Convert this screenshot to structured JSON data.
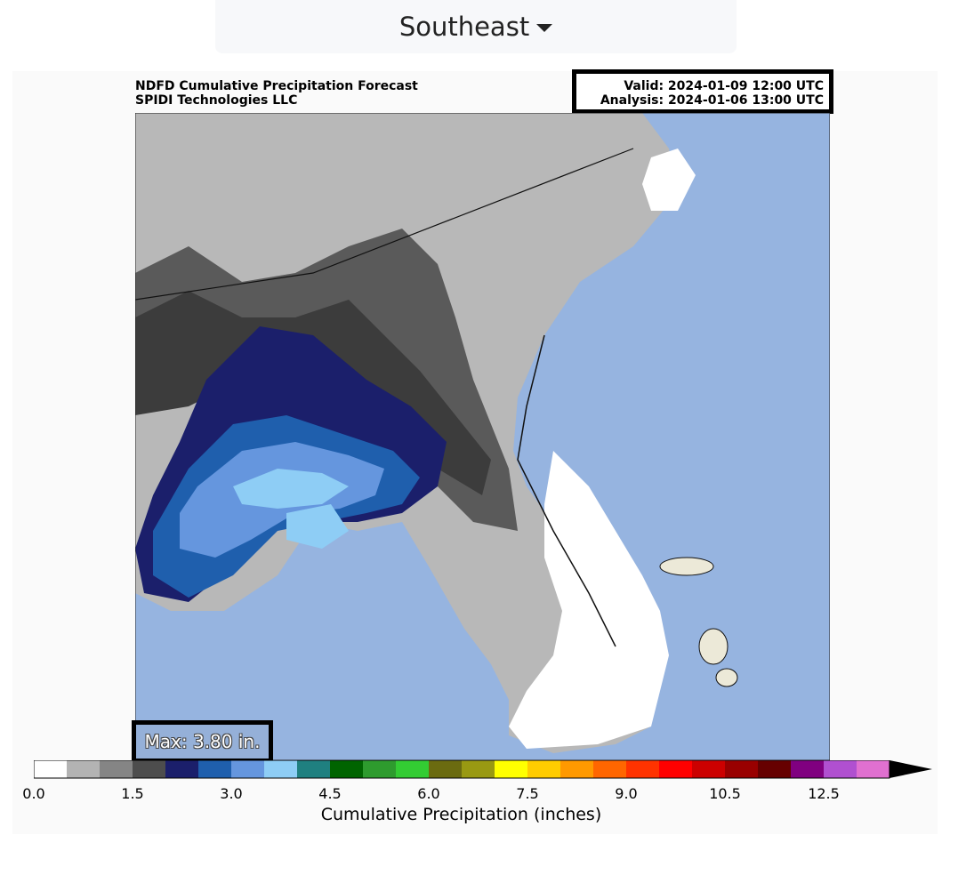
{
  "region_selector": {
    "label": "Southeast"
  },
  "figure": {
    "title_line1": "NDFD Cumulative Precipitation Forecast",
    "title_line2": "SPIDI Technologies LLC",
    "valid": "Valid: 2024-01-09 12:00 UTC",
    "analysis": "Analysis: 2024-01-06 13:00 UTC",
    "max_label": "Max: 3.80 in."
  },
  "colorbar": {
    "label": "Cumulative Precipitation (inches)",
    "ticks": [
      "0.0",
      "1.5",
      "3.0",
      "4.5",
      "6.0",
      "7.5",
      "9.0",
      "10.5",
      "12.5"
    ],
    "colors": [
      "#ffffff",
      "#b3b3b3",
      "#858585",
      "#4d4d4d",
      "#1b1f6b",
      "#1f5fad",
      "#6596de",
      "#8ecdf5",
      "#1f8080",
      "#006400",
      "#2e9b2e",
      "#33cc33",
      "#6b6b10",
      "#999912",
      "#ffff00",
      "#ffcc00",
      "#ff9900",
      "#ff6600",
      "#ff3300",
      "#ff0000",
      "#cc0000",
      "#990000",
      "#660000",
      "#800080",
      "#b050d0",
      "#e070d0"
    ],
    "extend_color": "#000000"
  },
  "map_colors": {
    "ocean": "#96b4e0",
    "land_dim": "#b8b8b8",
    "land_mid": "#9a9a9a",
    "land_dark": "#5a5a5a",
    "land_darker": "#3c3c3c",
    "navy": "#1b1f6b",
    "blue": "#1f5fad",
    "lightblue": "#6596de",
    "sky": "#8ecdf5",
    "island": "#ece9d8"
  }
}
